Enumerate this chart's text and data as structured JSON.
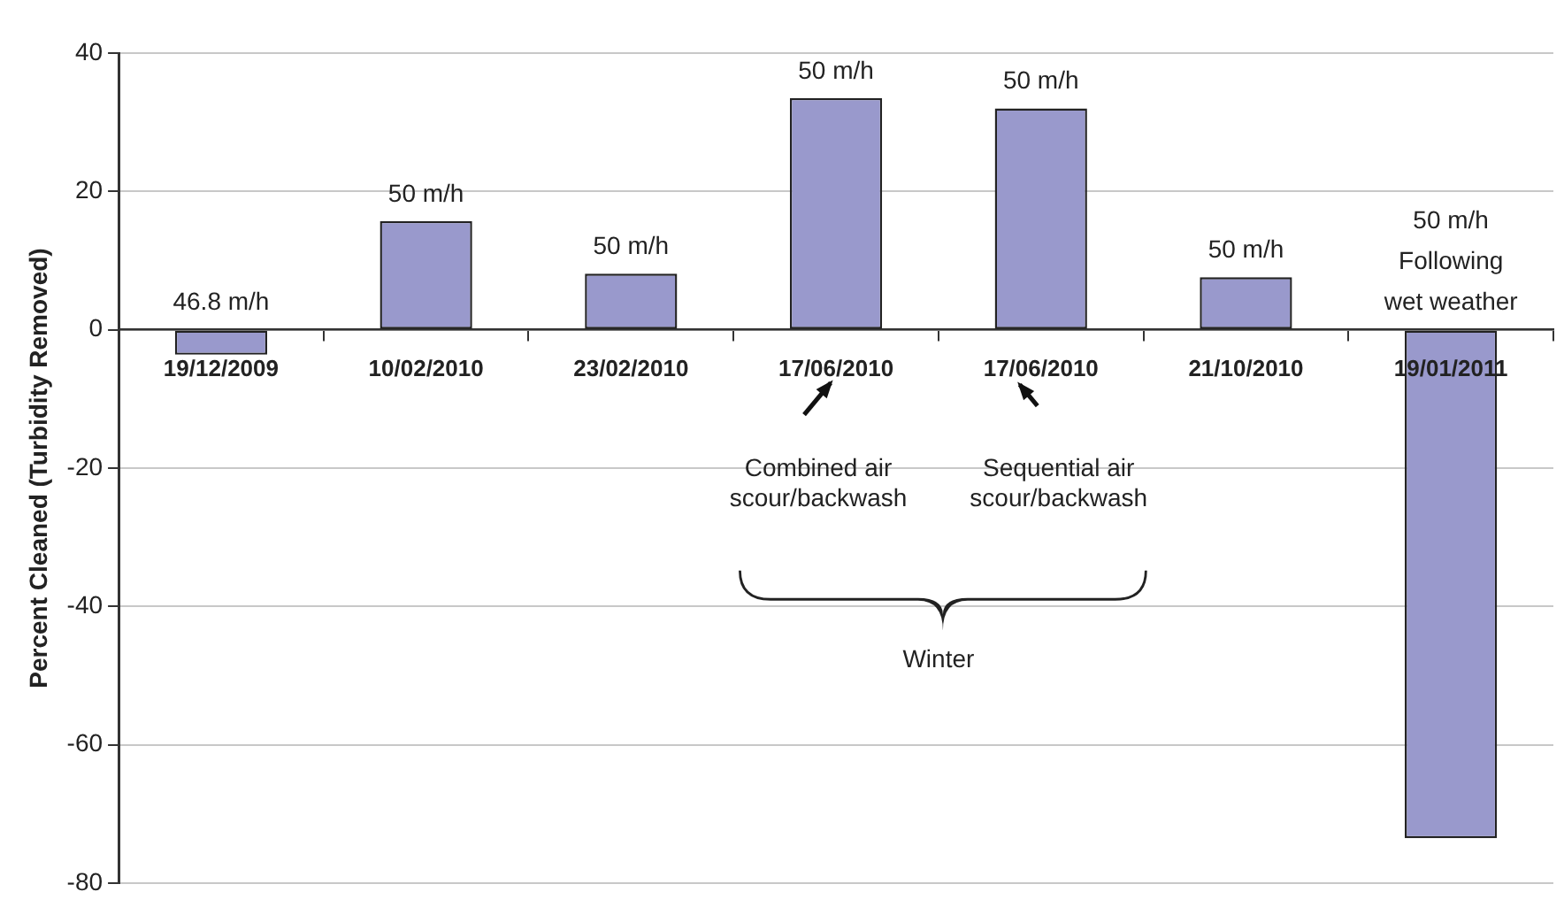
{
  "chart_data": {
    "type": "bar",
    "ylabel": "Percent Cleaned (Turbidity Removed)",
    "categories": [
      "19/12/2009",
      "10/02/2010",
      "23/02/2010",
      "17/06/2010",
      "17/06/2010",
      "21/10/2010",
      "19/01/2011"
    ],
    "values": [
      -3.6,
      15.7,
      8.1,
      33.5,
      32,
      7.6,
      -73.5
    ],
    "color": "#9999cc",
    "ylim": [
      -80,
      40
    ],
    "yticks": [
      -80,
      -60,
      -40,
      -20,
      0,
      20,
      40
    ],
    "grid": "y",
    "legend": false,
    "annotations": [
      "46.8 m/h",
      "50 m/h",
      "50 m/h",
      "50 m/h",
      "50 m/h",
      "50 m/h",
      "50 m/h\nFollowing\nwet weather",
      "Combined air\nscour/backwash",
      "Sequential air\nscour/backwash",
      "Winter"
    ]
  }
}
